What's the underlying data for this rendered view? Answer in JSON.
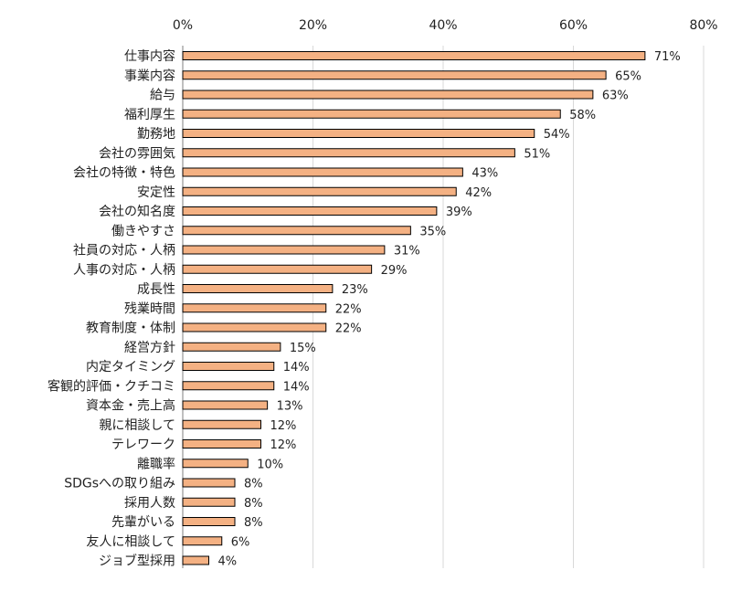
{
  "chart_data": {
    "type": "bar",
    "orientation": "horizontal",
    "categories": [
      "仕事内容",
      "事業内容",
      "給与",
      "福利厚生",
      "勤務地",
      "会社の雰囲気",
      "会社の特徴・特色",
      "安定性",
      "会社の知名度",
      "働きやすさ",
      "社員の対応・人柄",
      "人事の対応・人柄",
      "成長性",
      "残業時間",
      "教育制度・体制",
      "経営方針",
      "内定タイミング",
      "客観的評価・クチコミ",
      "資本金・売上高",
      "親に相談して",
      "テレワーク",
      "離職率",
      "SDGsへの取り組み",
      "採用人数",
      "先輩がいる",
      "友人に相談して",
      "ジョブ型採用"
    ],
    "values": [
      71,
      65,
      63,
      58,
      54,
      51,
      43,
      42,
      39,
      35,
      31,
      29,
      23,
      22,
      22,
      15,
      14,
      14,
      13,
      12,
      12,
      10,
      8,
      8,
      8,
      6,
      4
    ],
    "value_labels": [
      "71%",
      "65%",
      "63%",
      "58%",
      "54%",
      "51%",
      "43%",
      "42%",
      "39%",
      "35%",
      "31%",
      "29%",
      "23%",
      "22%",
      "22%",
      "15%",
      "14%",
      "14%",
      "13%",
      "12%",
      "12%",
      "10%",
      "8%",
      "8%",
      "8%",
      "6%",
      "4%"
    ],
    "xlim": [
      0,
      80
    ],
    "x_ticks": [
      0,
      20,
      40,
      60,
      80
    ],
    "x_tick_labels": [
      "0%",
      "20%",
      "40%",
      "60%",
      "80%"
    ],
    "x_axis_position": "top",
    "grid": true,
    "title": "",
    "xlabel": "",
    "ylabel": "",
    "colors": {
      "bar_fill": "#F4B183",
      "bar_stroke": "#000000",
      "grid": "#D9D9D9",
      "text": "#222222"
    }
  }
}
